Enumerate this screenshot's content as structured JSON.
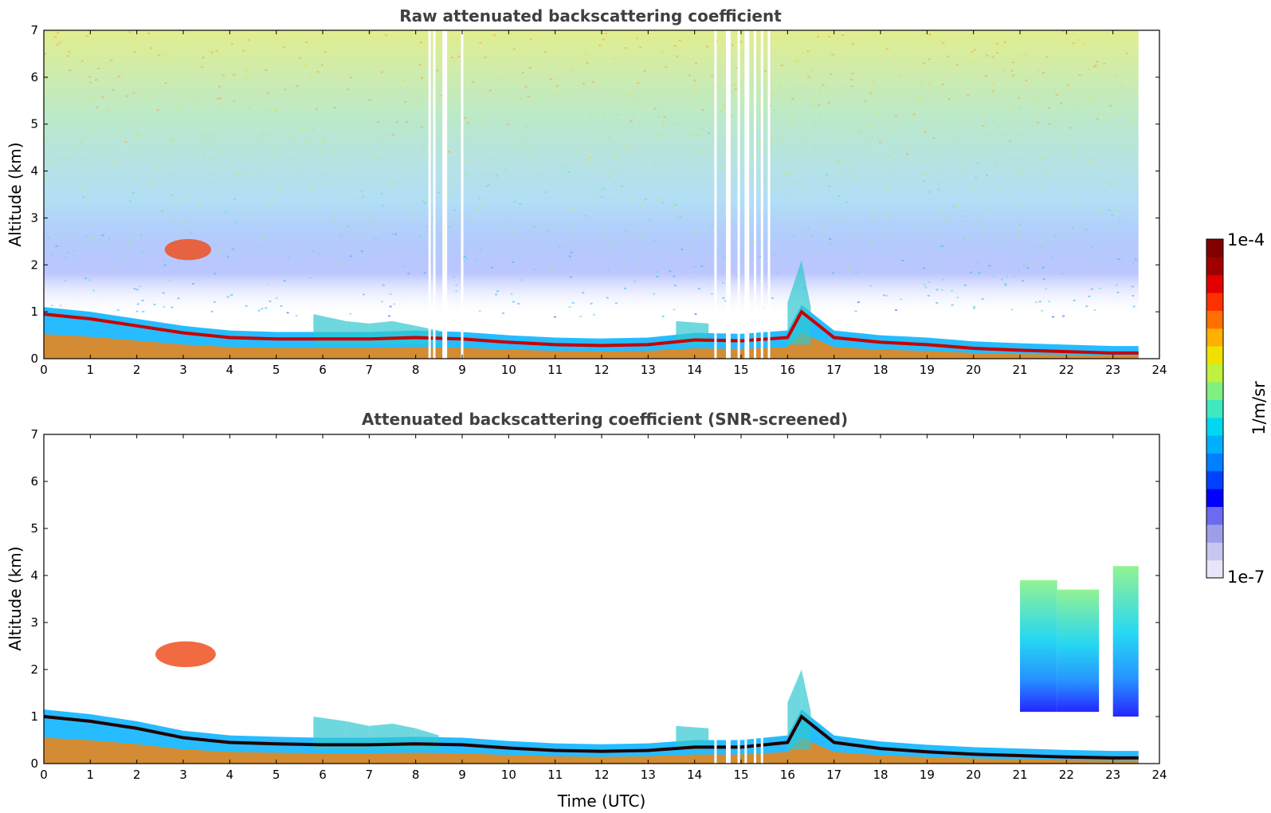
{
  "chart_data": [
    {
      "type": "heatmap",
      "title": "Raw attenuated backscattering coefficient",
      "xlabel": "",
      "ylabel": "Altitude (km)",
      "xlim": [
        0,
        24
      ],
      "ylim": [
        0,
        7
      ],
      "xticks": [
        "0",
        "1",
        "2",
        "3",
        "4",
        "5",
        "6",
        "7",
        "8",
        "9",
        "10",
        "11",
        "12",
        "13",
        "14",
        "15",
        "16",
        "17",
        "18",
        "19",
        "20",
        "21",
        "22",
        "23",
        "24"
      ],
      "yticks": [
        "0",
        "1",
        "2",
        "3",
        "4",
        "5",
        "6",
        "7"
      ],
      "data_end_time": 23.55,
      "layer_top_km": [
        [
          0,
          0.95
        ],
        [
          1,
          0.85
        ],
        [
          2,
          0.7
        ],
        [
          3,
          0.55
        ],
        [
          4,
          0.45
        ],
        [
          5,
          0.42
        ],
        [
          6,
          0.42
        ],
        [
          7,
          0.42
        ],
        [
          8,
          0.45
        ],
        [
          9,
          0.42
        ],
        [
          10,
          0.35
        ],
        [
          11,
          0.3
        ],
        [
          12,
          0.28
        ],
        [
          13,
          0.3
        ],
        [
          14,
          0.4
        ],
        [
          15,
          0.38
        ],
        [
          16,
          0.45
        ],
        [
          16.3,
          1.0
        ],
        [
          17,
          0.45
        ],
        [
          18,
          0.35
        ],
        [
          19,
          0.3
        ],
        [
          20,
          0.22
        ],
        [
          21,
          0.18
        ],
        [
          22,
          0.15
        ],
        [
          23,
          0.12
        ],
        [
          23.55,
          0.12
        ]
      ],
      "aerosol_top_km": [
        [
          5.8,
          0.95
        ],
        [
          6.5,
          0.8
        ],
        [
          7,
          0.75
        ],
        [
          7.5,
          0.8
        ],
        [
          8,
          0.7
        ],
        [
          8.5,
          0.6
        ],
        [
          13.6,
          0.8
        ],
        [
          14.3,
          0.75
        ],
        [
          16.0,
          1.2
        ],
        [
          16.3,
          2.1
        ],
        [
          16.5,
          1.1
        ]
      ],
      "elevated_layer": {
        "time": [
          2.6,
          3.6
        ],
        "altitude_km": [
          2.1,
          2.55
        ]
      },
      "missing_profiles_utc": [
        8.3,
        8.4,
        8.6,
        8.65,
        9.0,
        14.45,
        14.7,
        14.75,
        14.95,
        15.1,
        15.15,
        15.3,
        15.45,
        15.6
      ],
      "colormap": "jet",
      "colorscale": "log"
    },
    {
      "type": "heatmap",
      "title": "Attenuated backscattering coefficient (SNR-screened)",
      "xlabel": "Time (UTC)",
      "ylabel": "Altitude (km)",
      "xlim": [
        0,
        24
      ],
      "ylim": [
        0,
        7
      ],
      "xticks": [
        "0",
        "1",
        "2",
        "3",
        "4",
        "5",
        "6",
        "7",
        "8",
        "9",
        "10",
        "11",
        "12",
        "13",
        "14",
        "15",
        "16",
        "17",
        "18",
        "19",
        "20",
        "21",
        "22",
        "23",
        "24"
      ],
      "yticks": [
        "0",
        "1",
        "2",
        "3",
        "4",
        "5",
        "6",
        "7"
      ],
      "data_end_time": 23.55,
      "layer_top_km": [
        [
          0,
          1.0
        ],
        [
          1,
          0.9
        ],
        [
          2,
          0.75
        ],
        [
          3,
          0.55
        ],
        [
          4,
          0.45
        ],
        [
          5,
          0.42
        ],
        [
          6,
          0.4
        ],
        [
          7,
          0.4
        ],
        [
          8,
          0.42
        ],
        [
          9,
          0.4
        ],
        [
          10,
          0.33
        ],
        [
          11,
          0.28
        ],
        [
          12,
          0.26
        ],
        [
          13,
          0.28
        ],
        [
          14,
          0.35
        ],
        [
          15,
          0.35
        ],
        [
          16,
          0.45
        ],
        [
          16.3,
          1.0
        ],
        [
          17,
          0.45
        ],
        [
          18,
          0.32
        ],
        [
          19,
          0.25
        ],
        [
          20,
          0.2
        ],
        [
          21,
          0.17
        ],
        [
          22,
          0.14
        ],
        [
          23,
          0.12
        ],
        [
          23.55,
          0.12
        ]
      ],
      "aerosol_top_km": [
        [
          5.8,
          1.0
        ],
        [
          6.5,
          0.9
        ],
        [
          7,
          0.8
        ],
        [
          7.5,
          0.85
        ],
        [
          8,
          0.75
        ],
        [
          8.5,
          0.6
        ],
        [
          13.6,
          0.8
        ],
        [
          14.3,
          0.75
        ],
        [
          16.0,
          1.3
        ],
        [
          16.3,
          2.0
        ],
        [
          16.5,
          1.1
        ]
      ],
      "elevated_layer": {
        "time": [
          2.4,
          3.7
        ],
        "altitude_km": [
          2.05,
          2.6
        ]
      },
      "screened_plume": [
        {
          "time": [
            21.0,
            21.8
          ],
          "altitude_km": [
            1.1,
            3.9
          ]
        },
        {
          "time": [
            21.8,
            22.7
          ],
          "altitude_km": [
            1.1,
            3.7
          ]
        },
        {
          "time": [
            23.0,
            23.55
          ],
          "altitude_km": [
            1.0,
            4.2
          ]
        }
      ],
      "missing_profiles_utc": [
        14.45,
        14.7,
        14.75,
        14.95,
        15.1,
        15.3,
        15.45
      ],
      "colormap": "jet",
      "colorscale": "log"
    }
  ],
  "colorbar": {
    "label": "1/m/sr",
    "min_label": "1e-7",
    "max_label": "1e-4",
    "colors": [
      "#e6e6f8",
      "#c6c6f0",
      "#9e9ee8",
      "#6b6bf0",
      "#0000ff",
      "#0040ff",
      "#0080ff",
      "#00b0ff",
      "#00d8f0",
      "#40e8c0",
      "#80f080",
      "#c0f040",
      "#f0e000",
      "#ffb000",
      "#ff7000",
      "#ff3000",
      "#e00000",
      "#a00000",
      "#800000"
    ]
  }
}
